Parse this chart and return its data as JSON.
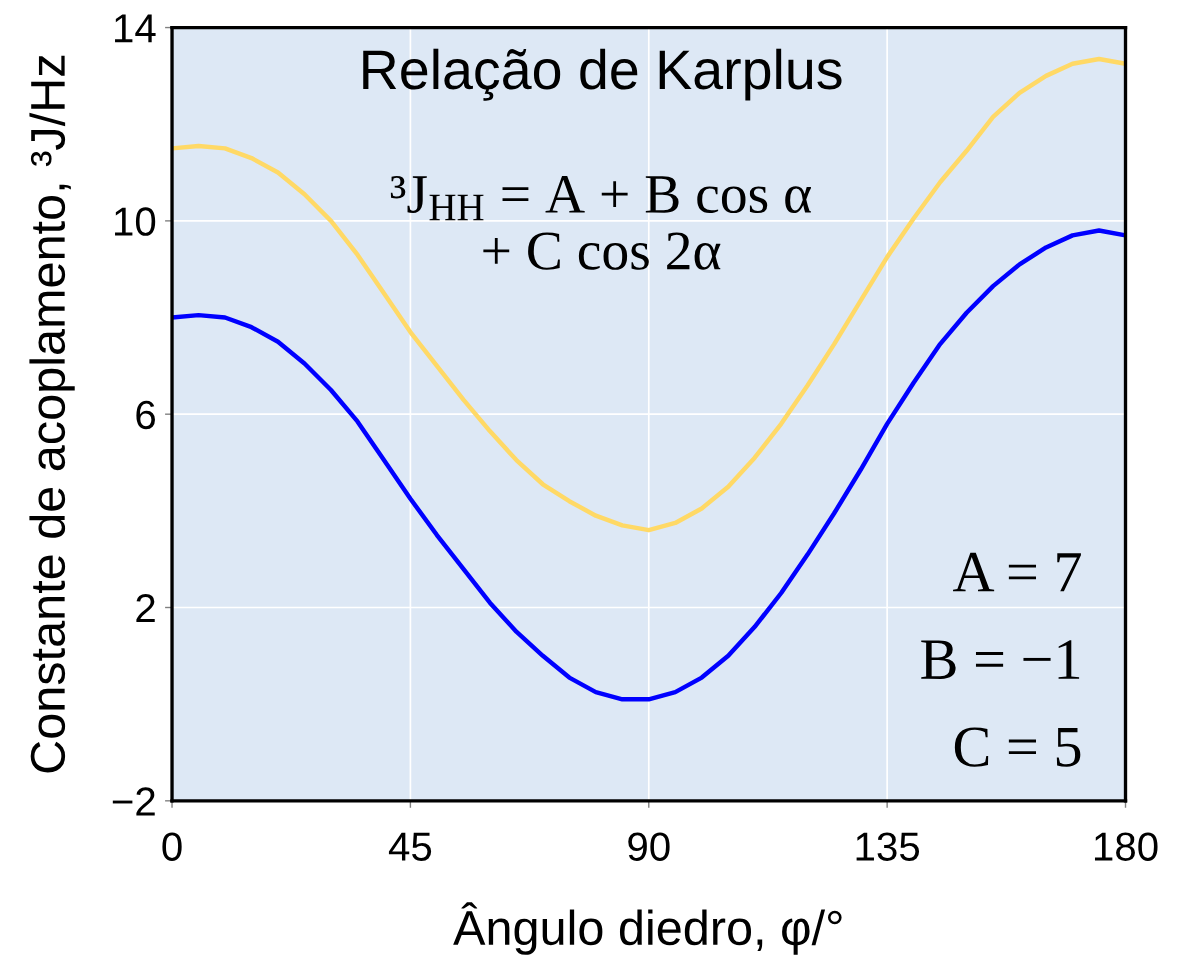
{
  "chart_data": {
    "type": "line",
    "title": "Relação de Karplus",
    "xlabel": "Ângulo diedro, φ/°",
    "ylabel": "Constante de acoplamento, ³J/Hz",
    "annotations": [
      "³J$_{HH}$ = A + B cos α\n+ C cos 2α",
      "A = 7",
      "B = −1",
      "C = 5"
    ],
    "x": [
      0,
      5,
      10,
      15,
      20,
      25,
      30,
      35,
      40,
      45,
      50,
      55,
      60,
      65,
      70,
      75,
      80,
      85,
      90,
      95,
      100,
      105,
      110,
      115,
      120,
      125,
      130,
      135,
      140,
      145,
      150,
      155,
      160,
      165,
      170,
      175,
      180
    ],
    "series": [
      {
        "color": "#0000ff",
        "values": [
          8.0,
          8.05,
          8.0,
          7.8,
          7.5,
          7.05,
          6.5,
          5.85,
          5.05,
          4.25,
          3.5,
          2.8,
          2.1,
          1.5,
          1.0,
          0.55,
          0.25,
          0.1,
          0.1,
          0.25,
          0.55,
          1.0,
          1.6,
          2.3,
          3.1,
          3.95,
          4.85,
          5.8,
          6.65,
          7.45,
          8.1,
          8.65,
          9.1,
          9.45,
          9.7,
          9.8,
          9.7
        ]
      },
      {
        "color": "#ffd966",
        "values": [
          11.5,
          11.55,
          11.5,
          11.3,
          11.0,
          10.55,
          10.0,
          9.3,
          8.5,
          7.7,
          7.0,
          6.3,
          5.65,
          5.05,
          4.55,
          4.2,
          3.9,
          3.7,
          3.6,
          3.75,
          4.05,
          4.5,
          5.1,
          5.8,
          6.6,
          7.45,
          8.35,
          9.25,
          10.05,
          10.8,
          11.45,
          12.15,
          12.65,
          13.0,
          13.25,
          13.35,
          13.25
        ]
      }
    ],
    "xlim": [
      0,
      180
    ],
    "xticks": [
      0,
      45,
      90,
      135,
      180
    ],
    "ylim": [
      -2,
      14
    ],
    "yticks": [
      {
        "value": -2,
        "label": "−2"
      },
      2,
      6,
      10,
      14
    ],
    "grid": true
  }
}
